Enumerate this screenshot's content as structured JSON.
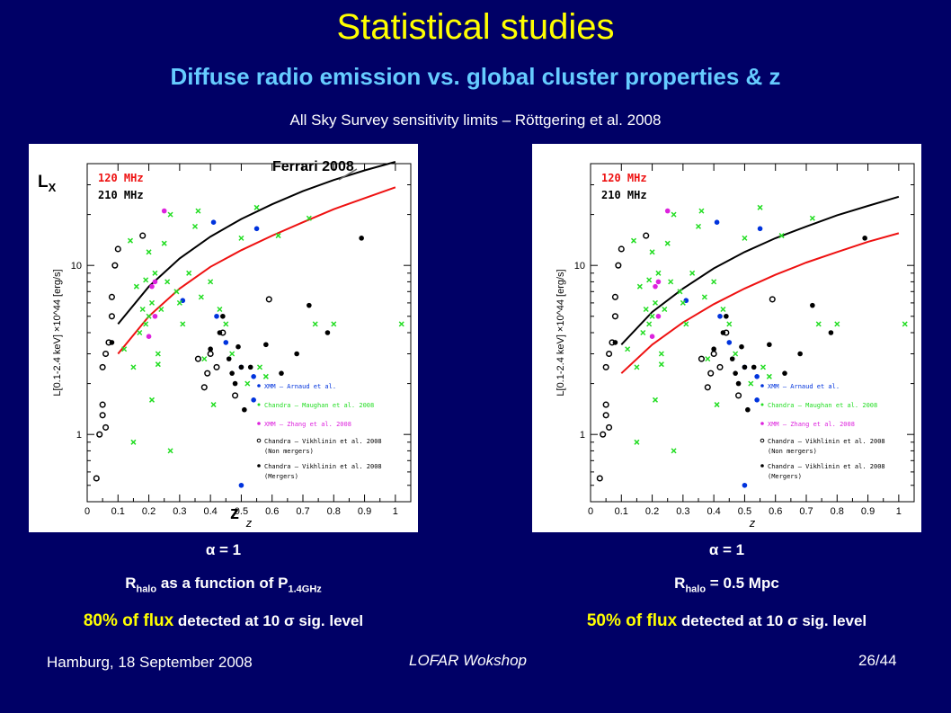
{
  "slide": {
    "title": "Statistical studies",
    "subtitle": "Diffuse radio emission vs. global cluster properties & z",
    "survey_note": "All Sky Survey sensitivity limits – Röttgering et al. 2008",
    "footer_left": "Hamburg, 18 September 2008",
    "footer_center": "LOFAR Wokshop",
    "footer_right": "26/44"
  },
  "colors": {
    "background": "#000066",
    "title": "#ffff00",
    "subtitle": "#66ccff",
    "curve_120": "#ee1111",
    "curve_210": "#000000",
    "xmm_arnaud": "#0033dd",
    "chandra_maughan": "#22dd22",
    "xmm_zhang": "#dd22dd"
  },
  "annotations": {
    "left_ferrari": "Ferrari 2008",
    "left_lx": "L",
    "left_lx_sub": "X",
    "left_z": "z"
  },
  "captions": {
    "left": {
      "alpha": "α = 1",
      "r_main": "R",
      "r_sub": "halo",
      "r_rest": " as a function of P",
      "p_sub": "1.4GHz",
      "flux_hi": "80% of flux",
      "flux_rest": " detected at 10 σ sig. level"
    },
    "right": {
      "alpha": "α = 1",
      "r_main": "R",
      "r_sub": "halo",
      "r_rest": " = 0.5 Mpc",
      "flux_hi": "50% of flux",
      "flux_rest": " detected at 10 σ sig. level"
    }
  },
  "chart_data": [
    {
      "type": "scatter",
      "xlabel": "z",
      "ylabel": "L[0.1-2.4 keV] ×10^44 [erg/s]",
      "xlim": [
        0,
        1.05
      ],
      "ylim": [
        0.4,
        40
      ],
      "ylog": true,
      "xticks": [
        0,
        0.1,
        0.2,
        0.3,
        0.4,
        0.5,
        0.6,
        0.7,
        0.8,
        0.9,
        1
      ],
      "yticks": [
        1,
        10
      ],
      "curve_labels": [
        "120 MHz",
        "210 MHz"
      ],
      "legend": [
        "XMM – Arnaud et al.",
        "Chandra – Maughan et al. 2008",
        "XMM – Zhang et al. 2008",
        "Chandra – Vikhlinin et al. 2008",
        "(Non mergers)",
        "Chandra – Vikhlinin et al. 2008",
        "(Mergers)"
      ],
      "curves": [
        {
          "name": "120 MHz",
          "x": [
            0.1,
            0.2,
            0.3,
            0.4,
            0.5,
            0.6,
            0.7,
            0.8,
            0.9,
            1.0
          ],
          "y": [
            3.0,
            5.0,
            7.3,
            9.8,
            12.3,
            15.0,
            18.0,
            21.5,
            25.0,
            29.0
          ]
        },
        {
          "name": "210 MHz",
          "x": [
            0.1,
            0.2,
            0.3,
            0.4,
            0.5,
            0.6,
            0.7,
            0.8,
            0.9,
            1.0
          ],
          "y": [
            4.5,
            7.5,
            11.0,
            14.8,
            18.8,
            23.0,
            27.5,
            32.0,
            36.5,
            41.0
          ]
        }
      ],
      "series": [
        {
          "name": "XMM – Arnaud et al.",
          "x": [
            0.31,
            0.41,
            0.42,
            0.45,
            0.5,
            0.54,
            0.54,
            0.55,
            0.5
          ],
          "y": [
            6.2,
            18.0,
            5.0,
            3.5,
            2.5,
            2.2,
            1.6,
            16.5,
            0.5
          ]
        },
        {
          "name": "Chandra – Maughan et al. 2008",
          "x": [
            0.12,
            0.14,
            0.15,
            0.16,
            0.17,
            0.18,
            0.19,
            0.2,
            0.21,
            0.22,
            0.23,
            0.25,
            0.27,
            0.29,
            0.31,
            0.33,
            0.35,
            0.36,
            0.38,
            0.4,
            0.43,
            0.45,
            0.47,
            0.5,
            0.55,
            0.58,
            0.62,
            0.72,
            0.74,
            0.8,
            1.02,
            0.15,
            0.21,
            0.23,
            0.2,
            0.19,
            0.27,
            0.37,
            0.41,
            0.52,
            0.56,
            0.24,
            0.26,
            0.3
          ],
          "y": [
            3.2,
            14.0,
            2.5,
            7.5,
            4.0,
            5.5,
            4.5,
            12.0,
            6.0,
            9.0,
            3.0,
            13.5,
            20.0,
            7.0,
            4.5,
            9.0,
            17.0,
            21.0,
            2.8,
            8.0,
            5.5,
            4.5,
            3.0,
            14.5,
            22.0,
            2.2,
            15.0,
            19.0,
            4.5,
            4.5,
            4.5,
            0.9,
            1.6,
            2.6,
            5.0,
            8.2,
            0.8,
            6.5,
            1.5,
            2.0,
            2.5,
            5.5,
            8.0,
            6.0
          ]
        },
        {
          "name": "XMM – Zhang et al. 2008",
          "x": [
            0.22,
            0.22,
            0.25,
            0.21,
            0.2
          ],
          "y": [
            8.0,
            5.0,
            21.0,
            7.5,
            3.8
          ]
        },
        {
          "name": "Chandra – Vikhlinin et al. 2008 (Non mergers)",
          "x": [
            0.03,
            0.04,
            0.05,
            0.05,
            0.05,
            0.06,
            0.07,
            0.08,
            0.09,
            0.1,
            0.18,
            0.38,
            0.4,
            0.42,
            0.44,
            0.48,
            0.59,
            0.06,
            0.08,
            0.36,
            0.39
          ],
          "y": [
            0.55,
            1.0,
            1.3,
            1.5,
            2.5,
            3.0,
            3.5,
            5.0,
            10.0,
            12.5,
            15.0,
            1.9,
            3.0,
            2.5,
            4.0,
            1.7,
            6.3,
            1.1,
            6.5,
            2.8,
            2.3
          ]
        },
        {
          "name": "Chandra – Vikhlinin et al. 2008 (Mergers)",
          "x": [
            0.08,
            0.43,
            0.46,
            0.48,
            0.51,
            0.53,
            0.58,
            0.63,
            0.68,
            0.72,
            0.78,
            0.89,
            0.5,
            0.47,
            0.4,
            0.44,
            0.49
          ],
          "y": [
            3.5,
            4.0,
            2.8,
            2.0,
            1.4,
            2.5,
            3.4,
            2.3,
            3.0,
            5.8,
            4.0,
            14.5,
            2.5,
            2.3,
            3.2,
            5.0,
            3.3
          ]
        }
      ]
    },
    {
      "type": "scatter",
      "xlabel": "z",
      "ylabel": "L[0.1-2.4 keV] ×10^44 [erg/s]",
      "xlim": [
        0,
        1.05
      ],
      "ylim": [
        0.4,
        40
      ],
      "ylog": true,
      "xticks": [
        0,
        0.1,
        0.2,
        0.3,
        0.4,
        0.5,
        0.6,
        0.7,
        0.8,
        0.9,
        1
      ],
      "yticks": [
        1,
        10
      ],
      "curve_labels": [
        "120 MHz",
        "210 MHz"
      ],
      "legend": [
        "XMM – Arnaud et al.",
        "Chandra – Maughan et al. 2008",
        "XMM – Zhang et al. 2008",
        "Chandra – Vikhlinin et al. 2008",
        "(Non mergers)",
        "Chandra – Vikhlinin et al. 2008",
        "(Mergers)"
      ],
      "curves": [
        {
          "name": "120 MHz",
          "x": [
            0.1,
            0.2,
            0.3,
            0.4,
            0.5,
            0.6,
            0.7,
            0.8,
            0.9,
            1.0
          ],
          "y": [
            2.3,
            3.4,
            4.6,
            5.9,
            7.3,
            8.8,
            10.4,
            12.0,
            13.8,
            15.5
          ]
        },
        {
          "name": "210 MHz",
          "x": [
            0.1,
            0.2,
            0.3,
            0.4,
            0.5,
            0.6,
            0.7,
            0.8,
            0.9,
            1.0
          ],
          "y": [
            3.4,
            5.3,
            7.3,
            9.6,
            12.0,
            14.5,
            17.0,
            19.8,
            22.5,
            25.5
          ]
        }
      ],
      "series": [
        {
          "name": "XMM – Arnaud et al.",
          "x": [
            0.31,
            0.41,
            0.42,
            0.45,
            0.5,
            0.54,
            0.54,
            0.55,
            0.5
          ],
          "y": [
            6.2,
            18.0,
            5.0,
            3.5,
            2.5,
            2.2,
            1.6,
            16.5,
            0.5
          ]
        },
        {
          "name": "Chandra – Maughan et al. 2008",
          "x": [
            0.12,
            0.14,
            0.15,
            0.16,
            0.17,
            0.18,
            0.19,
            0.2,
            0.21,
            0.22,
            0.23,
            0.25,
            0.27,
            0.29,
            0.31,
            0.33,
            0.35,
            0.36,
            0.38,
            0.4,
            0.43,
            0.45,
            0.47,
            0.5,
            0.55,
            0.58,
            0.62,
            0.72,
            0.74,
            0.8,
            1.02,
            0.15,
            0.21,
            0.23,
            0.2,
            0.19,
            0.27,
            0.37,
            0.41,
            0.52,
            0.56,
            0.24,
            0.26,
            0.3
          ],
          "y": [
            3.2,
            14.0,
            2.5,
            7.5,
            4.0,
            5.5,
            4.5,
            12.0,
            6.0,
            9.0,
            3.0,
            13.5,
            20.0,
            7.0,
            4.5,
            9.0,
            17.0,
            21.0,
            2.8,
            8.0,
            5.5,
            4.5,
            3.0,
            14.5,
            22.0,
            2.2,
            15.0,
            19.0,
            4.5,
            4.5,
            4.5,
            0.9,
            1.6,
            2.6,
            5.0,
            8.2,
            0.8,
            6.5,
            1.5,
            2.0,
            2.5,
            5.5,
            8.0,
            6.0
          ]
        },
        {
          "name": "XMM – Zhang et al. 2008",
          "x": [
            0.22,
            0.22,
            0.25,
            0.21,
            0.2
          ],
          "y": [
            8.0,
            5.0,
            21.0,
            7.5,
            3.8
          ]
        },
        {
          "name": "Chandra – Vikhlinin et al. 2008 (Non mergers)",
          "x": [
            0.03,
            0.04,
            0.05,
            0.05,
            0.05,
            0.06,
            0.07,
            0.08,
            0.09,
            0.1,
            0.18,
            0.38,
            0.4,
            0.42,
            0.44,
            0.48,
            0.59,
            0.06,
            0.08,
            0.36,
            0.39
          ],
          "y": [
            0.55,
            1.0,
            1.3,
            1.5,
            2.5,
            3.0,
            3.5,
            5.0,
            10.0,
            12.5,
            15.0,
            1.9,
            3.0,
            2.5,
            4.0,
            1.7,
            6.3,
            1.1,
            6.5,
            2.8,
            2.3
          ]
        },
        {
          "name": "Chandra – Vikhlinin et al. 2008 (Mergers)",
          "x": [
            0.08,
            0.43,
            0.46,
            0.48,
            0.51,
            0.53,
            0.58,
            0.63,
            0.68,
            0.72,
            0.78,
            0.89,
            0.5,
            0.47,
            0.4,
            0.44,
            0.49
          ],
          "y": [
            3.5,
            4.0,
            2.8,
            2.0,
            1.4,
            2.5,
            3.4,
            2.3,
            3.0,
            5.8,
            4.0,
            14.5,
            2.5,
            2.3,
            3.2,
            5.0,
            3.3
          ]
        }
      ]
    }
  ]
}
